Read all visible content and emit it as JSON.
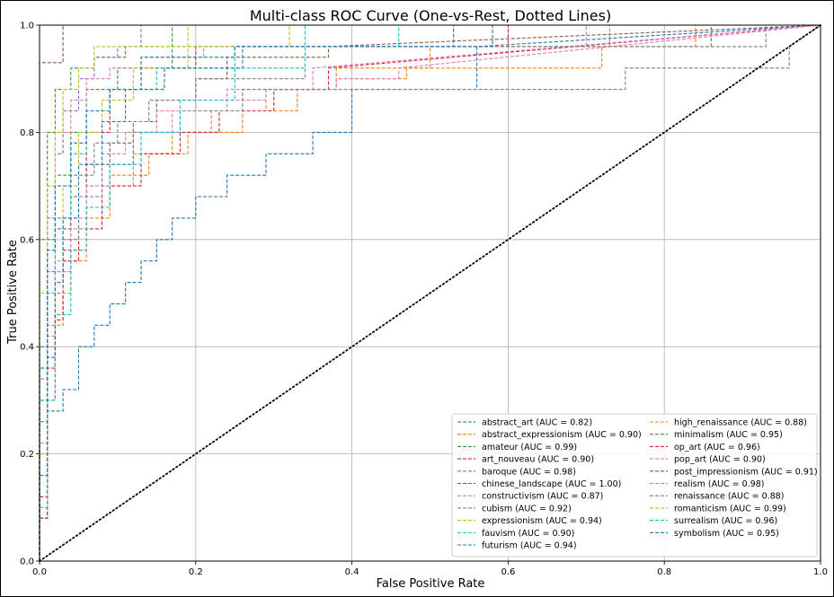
{
  "chart_data": {
    "type": "line",
    "title": "Multi-class ROC Curve (One-vs-Rest, Dotted Lines)",
    "xlabel": "False Positive Rate",
    "ylabel": "True Positive Rate",
    "xlim": [
      0.0,
      1.0
    ],
    "ylim": [
      0.0,
      1.0
    ],
    "xticks": [
      "0.0",
      "0.2",
      "0.4",
      "0.6",
      "0.8",
      "1.0"
    ],
    "yticks": [
      "0.0",
      "0.2",
      "0.4",
      "0.6",
      "0.8",
      "1.0"
    ],
    "grid": true,
    "legend_position": "lower-right",
    "legend_columns": 2,
    "diagonal": {
      "x": [
        0,
        1
      ],
      "y": [
        0,
        1
      ],
      "style": "dotted",
      "color": "#000000"
    },
    "series": [
      {
        "name": "abstract_art (AUC = 0.82)",
        "color": "#1f77b4",
        "x": [
          0,
          0,
          0.01,
          0.01,
          0.03,
          0.03,
          0.05,
          0.05,
          0.07,
          0.07,
          0.09,
          0.09,
          0.11,
          0.11,
          0.13,
          0.13,
          0.15,
          0.15,
          0.17,
          0.17,
          0.2,
          0.2,
          0.24,
          0.24,
          0.29,
          0.29,
          0.35,
          0.35,
          0.4,
          0.4,
          0.56,
          0.56,
          1
        ],
        "y": [
          0,
          0.08,
          0.08,
          0.28,
          0.28,
          0.32,
          0.32,
          0.4,
          0.4,
          0.44,
          0.44,
          0.48,
          0.48,
          0.52,
          0.52,
          0.56,
          0.56,
          0.6,
          0.6,
          0.64,
          0.64,
          0.68,
          0.68,
          0.72,
          0.72,
          0.76,
          0.76,
          0.8,
          0.8,
          0.88,
          0.88,
          0.96,
          1
        ]
      },
      {
        "name": "high_renaissance (AUC = 0.88)",
        "color": "#ff7f0e",
        "x": [
          0,
          0,
          0.02,
          0.02,
          0.04,
          0.04,
          0.06,
          0.06,
          0.09,
          0.09,
          0.12,
          0.12,
          0.17,
          0.17,
          0.22,
          0.22,
          0.29,
          0.29,
          0.38,
          0.38,
          0.47,
          0.47,
          0.72,
          0.72,
          0.84,
          0.84,
          1
        ],
        "y": [
          0,
          0.3,
          0.3,
          0.5,
          0.5,
          0.58,
          0.58,
          0.64,
          0.64,
          0.7,
          0.7,
          0.76,
          0.76,
          0.8,
          0.8,
          0.84,
          0.84,
          0.88,
          0.88,
          0.9,
          0.9,
          0.92,
          0.92,
          0.96,
          0.96,
          1,
          1
        ]
      },
      {
        "name": "abstract_expressionism (AUC = 0.90)",
        "color": "#ff7f0e",
        "x": [
          0,
          0,
          0.01,
          0.01,
          0.03,
          0.03,
          0.06,
          0.06,
          0.09,
          0.09,
          0.14,
          0.14,
          0.19,
          0.19,
          0.26,
          0.26,
          0.33,
          0.33,
          0.38,
          0.38,
          0.5,
          0.5,
          0.73,
          0.73,
          1
        ],
        "y": [
          0,
          0.2,
          0.2,
          0.44,
          0.44,
          0.56,
          0.56,
          0.66,
          0.66,
          0.72,
          0.72,
          0.76,
          0.76,
          0.8,
          0.8,
          0.84,
          0.84,
          0.88,
          0.88,
          0.92,
          0.92,
          0.96,
          0.96,
          1,
          1
        ]
      },
      {
        "name": "minimalism (AUC = 0.95)",
        "color": "#2ca02c",
        "x": [
          0,
          0,
          0.01,
          0.01,
          0.02,
          0.02,
          0.04,
          0.04,
          0.06,
          0.06,
          0.1,
          0.1,
          0.17,
          0.17,
          0.86,
          0.86,
          1
        ],
        "y": [
          0,
          0.4,
          0.4,
          0.6,
          0.6,
          0.72,
          0.72,
          0.8,
          0.8,
          0.88,
          0.88,
          0.92,
          0.92,
          0.96,
          0.96,
          1,
          1
        ]
      },
      {
        "name": "amateur (AUC = 0.99)",
        "color": "#2ca02c",
        "x": [
          0,
          0,
          0.01,
          0.01,
          0.02,
          0.02,
          0.04,
          0.04,
          0.07,
          0.07,
          0.11,
          0.11,
          0.17,
          0.17,
          1
        ],
        "y": [
          0,
          0.6,
          0.6,
          0.8,
          0.8,
          0.88,
          0.88,
          0.92,
          0.92,
          0.94,
          0.94,
          0.96,
          0.96,
          1,
          1
        ]
      },
      {
        "name": "op_art (AUC = 0.96)",
        "color": "#d62728",
        "x": [
          0,
          0,
          0.01,
          0.01,
          0.02,
          0.02,
          0.03,
          0.03,
          0.05,
          0.05,
          0.06,
          0.06,
          0.09,
          0.09,
          0.13,
          0.13,
          0.2,
          0.2,
          0.6,
          0.6,
          1
        ],
        "y": [
          0,
          0.08,
          0.08,
          0.3,
          0.3,
          0.45,
          0.45,
          0.58,
          0.58,
          0.68,
          0.68,
          0.8,
          0.8,
          0.88,
          0.88,
          0.92,
          0.92,
          0.96,
          0.96,
          1,
          1
        ]
      },
      {
        "name": "art_nouveau (AUC = 0.90)",
        "color": "#d62728",
        "x": [
          0,
          0,
          0.01,
          0.01,
          0.02,
          0.02,
          0.03,
          0.03,
          0.05,
          0.05,
          0.08,
          0.08,
          0.13,
          0.13,
          0.18,
          0.18,
          0.23,
          0.23,
          0.3,
          0.3,
          0.37,
          0.37,
          1
        ],
        "y": [
          0,
          0.12,
          0.12,
          0.36,
          0.36,
          0.46,
          0.46,
          0.56,
          0.56,
          0.62,
          0.62,
          0.7,
          0.7,
          0.76,
          0.76,
          0.8,
          0.8,
          0.84,
          0.84,
          0.88,
          0.88,
          0.92,
          1
        ]
      },
      {
        "name": "pop_art (AUC = 0.90)",
        "color": "#e377c2",
        "x": [
          0,
          0,
          0.01,
          0.01,
          0.02,
          0.02,
          0.04,
          0.04,
          0.06,
          0.06,
          0.09,
          0.09,
          0.12,
          0.12,
          0.17,
          0.17,
          0.2,
          0.2,
          0.29,
          0.29,
          0.38,
          0.38,
          0.46,
          0.46,
          1
        ],
        "y": [
          0,
          0.22,
          0.22,
          0.4,
          0.4,
          0.54,
          0.54,
          0.64,
          0.64,
          0.7,
          0.7,
          0.74,
          0.74,
          0.8,
          0.8,
          0.84,
          0.84,
          0.86,
          0.86,
          0.88,
          0.88,
          0.9,
          0.9,
          0.92,
          1
        ]
      },
      {
        "name": "baroque (AUC = 0.98)",
        "color": "#9467bd",
        "x": [
          0,
          0,
          0.01,
          0.01,
          0.02,
          0.02,
          0.03,
          0.03,
          0.05,
          0.05,
          0.07,
          0.07,
          0.1,
          0.1,
          0.13,
          0.13,
          1
        ],
        "y": [
          0,
          0.4,
          0.4,
          0.64,
          0.64,
          0.76,
          0.76,
          0.84,
          0.84,
          0.9,
          0.9,
          0.94,
          0.94,
          0.96,
          0.96,
          1,
          1
        ]
      },
      {
        "name": "post_impressionism (AUC = 0.91)",
        "color": "#8c564b",
        "x": [
          0,
          0,
          0.01,
          0.01,
          0.02,
          0.02,
          0.04,
          0.04,
          0.06,
          0.06,
          0.09,
          0.09,
          0.12,
          0.12,
          0.15,
          0.15,
          0.2,
          0.2,
          0.24,
          0.24,
          0.37,
          0.37,
          1
        ],
        "y": [
          0,
          0.3,
          0.3,
          0.5,
          0.5,
          0.62,
          0.62,
          0.68,
          0.68,
          0.74,
          0.74,
          0.78,
          0.78,
          0.82,
          0.82,
          0.86,
          0.86,
          0.9,
          0.9,
          0.94,
          0.94,
          0.96,
          1
        ]
      },
      {
        "name": "chinese_landscape (AUC = 1.00)",
        "color": "#8c564b",
        "x": [
          0,
          0,
          0.03,
          0.03,
          1
        ],
        "y": [
          0,
          0.93,
          0.93,
          1,
          1
        ]
      },
      {
        "name": "realism (AUC = 0.98)",
        "color": "#e377c2",
        "x": [
          0,
          0,
          0.01,
          0.01,
          0.02,
          0.02,
          0.04,
          0.04,
          0.06,
          0.06,
          0.09,
          0.09,
          0.13,
          0.13,
          0.21,
          0.21,
          0.7,
          0.7,
          1
        ],
        "y": [
          0,
          0.5,
          0.5,
          0.7,
          0.7,
          0.8,
          0.8,
          0.86,
          0.86,
          0.9,
          0.9,
          0.92,
          0.92,
          0.94,
          0.94,
          0.96,
          0.96,
          1,
          1
        ]
      },
      {
        "name": "constructivism (AUC = 0.87)",
        "color": "#e377c2",
        "x": [
          0,
          0,
          0.01,
          0.01,
          0.02,
          0.02,
          0.04,
          0.04,
          0.06,
          0.06,
          0.08,
          0.08,
          0.11,
          0.11,
          0.15,
          0.15,
          0.24,
          0.24,
          0.35,
          0.35,
          1
        ],
        "y": [
          0,
          0.2,
          0.2,
          0.42,
          0.42,
          0.54,
          0.54,
          0.62,
          0.62,
          0.7,
          0.7,
          0.76,
          0.76,
          0.8,
          0.8,
          0.84,
          0.84,
          0.88,
          0.88,
          0.92,
          1
        ]
      },
      {
        "name": "renaissance (AUC = 0.88)",
        "color": "#7f7f7f",
        "x": [
          0,
          0,
          0.01,
          0.01,
          0.03,
          0.03,
          0.05,
          0.05,
          0.08,
          0.08,
          0.12,
          0.12,
          0.18,
          0.18,
          0.26,
          0.26,
          0.75,
          0.75,
          0.96,
          0.96,
          1
        ],
        "y": [
          0,
          0.26,
          0.26,
          0.5,
          0.5,
          0.6,
          0.6,
          0.68,
          0.68,
          0.74,
          0.74,
          0.8,
          0.8,
          0.84,
          0.84,
          0.88,
          0.88,
          0.92,
          0.92,
          0.96,
          1
        ]
      },
      {
        "name": "cubism (AUC = 0.92)",
        "color": "#7f7f7f",
        "x": [
          0,
          0,
          0.01,
          0.01,
          0.02,
          0.02,
          0.04,
          0.04,
          0.07,
          0.07,
          0.1,
          0.1,
          0.14,
          0.14,
          0.2,
          0.2,
          0.34,
          0.34,
          0.93,
          0.93,
          1
        ],
        "y": [
          0,
          0.34,
          0.34,
          0.54,
          0.54,
          0.64,
          0.64,
          0.72,
          0.72,
          0.78,
          0.78,
          0.82,
          0.82,
          0.86,
          0.86,
          0.9,
          0.9,
          0.96,
          0.96,
          1,
          1
        ]
      },
      {
        "name": "romanticism (AUC = 0.99)",
        "color": "#bcbd22",
        "x": [
          0,
          0,
          0.01,
          0.01,
          0.02,
          0.02,
          0.03,
          0.03,
          0.05,
          0.05,
          0.07,
          0.07,
          0.19,
          0.19,
          1
        ],
        "y": [
          0,
          0.5,
          0.5,
          0.7,
          0.7,
          0.8,
          0.8,
          0.88,
          0.88,
          0.92,
          0.92,
          0.96,
          0.96,
          1,
          1
        ]
      },
      {
        "name": "expressionism (AUC = 0.94)",
        "color": "#bcbd22",
        "x": [
          0,
          0,
          0.01,
          0.01,
          0.02,
          0.02,
          0.03,
          0.03,
          0.05,
          0.05,
          0.08,
          0.08,
          0.12,
          0.12,
          0.19,
          0.19,
          0.32,
          0.32,
          1
        ],
        "y": [
          0,
          0.2,
          0.2,
          0.4,
          0.4,
          0.56,
          0.56,
          0.7,
          0.7,
          0.8,
          0.8,
          0.86,
          0.86,
          0.92,
          0.92,
          0.96,
          0.96,
          1,
          1
        ]
      },
      {
        "name": "surrealism (AUC = 0.96)",
        "color": "#17becf",
        "x": [
          0,
          0,
          0.01,
          0.01,
          0.02,
          0.02,
          0.04,
          0.04,
          0.06,
          0.06,
          0.09,
          0.09,
          0.15,
          0.15,
          0.25,
          0.25,
          0.46,
          0.46,
          1
        ],
        "y": [
          0,
          0.3,
          0.3,
          0.5,
          0.5,
          0.64,
          0.64,
          0.76,
          0.76,
          0.84,
          0.84,
          0.88,
          0.88,
          0.92,
          0.92,
          0.96,
          0.96,
          1,
          1
        ]
      },
      {
        "name": "fauvism (AUC = 0.90)",
        "color": "#17becf",
        "x": [
          0,
          0,
          0.01,
          0.01,
          0.02,
          0.02,
          0.04,
          0.04,
          0.06,
          0.06,
          0.09,
          0.09,
          0.13,
          0.13,
          0.18,
          0.18,
          0.25,
          0.25,
          0.34,
          0.34,
          1
        ],
        "y": [
          0,
          0.1,
          0.1,
          0.3,
          0.3,
          0.46,
          0.46,
          0.58,
          0.58,
          0.66,
          0.66,
          0.74,
          0.74,
          0.8,
          0.8,
          0.86,
          0.86,
          0.92,
          0.92,
          1,
          1
        ]
      },
      {
        "name": "symbolism (AUC = 0.95)",
        "color": "#1f77b4",
        "x": [
          0,
          0,
          0.01,
          0.01,
          0.02,
          0.02,
          0.04,
          0.04,
          0.06,
          0.06,
          0.09,
          0.09,
          0.13,
          0.13,
          0.25,
          0.25,
          0.58,
          0.58,
          1
        ],
        "y": [
          0,
          0.36,
          0.36,
          0.58,
          0.58,
          0.7,
          0.7,
          0.78,
          0.78,
          0.84,
          0.84,
          0.88,
          0.88,
          0.94,
          0.94,
          0.96,
          0.96,
          1,
          1
        ]
      },
      {
        "name": "futurism (AUC = 0.94)",
        "color": "#1f77b4",
        "x": [
          0,
          0,
          0.01,
          0.01,
          0.02,
          0.02,
          0.03,
          0.03,
          0.05,
          0.05,
          0.08,
          0.08,
          0.11,
          0.11,
          0.16,
          0.16,
          0.26,
          0.26,
          0.53,
          0.53,
          1
        ],
        "y": [
          0,
          0.16,
          0.16,
          0.38,
          0.38,
          0.52,
          0.52,
          0.64,
          0.64,
          0.74,
          0.74,
          0.82,
          0.82,
          0.88,
          0.88,
          0.92,
          0.92,
          0.96,
          0.96,
          1,
          1
        ]
      }
    ],
    "legend_left_column": [
      {
        "label": "abstract_art (AUC = 0.82)",
        "color": "#1f77b4"
      },
      {
        "label": "abstract_expressionism (AUC = 0.90)",
        "color": "#ff7f0e"
      },
      {
        "label": "amateur (AUC = 0.99)",
        "color": "#2ca02c"
      },
      {
        "label": "art_nouveau (AUC = 0.90)",
        "color": "#d62728"
      },
      {
        "label": "baroque (AUC = 0.98)",
        "color": "#9467bd"
      },
      {
        "label": "chinese_landscape (AUC = 1.00)",
        "color": "#8c564b"
      },
      {
        "label": "constructivism (AUC = 0.87)",
        "color": "#e377c2"
      },
      {
        "label": "cubism (AUC = 0.92)",
        "color": "#7f7f7f"
      },
      {
        "label": "expressionism (AUC = 0.94)",
        "color": "#bcbd22"
      },
      {
        "label": "fauvism (AUC = 0.90)",
        "color": "#17becf"
      },
      {
        "label": "futurism (AUC = 0.94)",
        "color": "#1f77b4"
      }
    ],
    "legend_right_column": [
      {
        "label": "high_renaissance (AUC = 0.88)",
        "color": "#ff7f0e"
      },
      {
        "label": "minimalism (AUC = 0.95)",
        "color": "#2ca02c"
      },
      {
        "label": "op_art (AUC = 0.96)",
        "color": "#d62728"
      },
      {
        "label": "pop_art (AUC = 0.90)",
        "color": "#e377c2"
      },
      {
        "label": "post_impressionism (AUC = 0.91)",
        "color": "#8c564b"
      },
      {
        "label": "realism (AUC = 0.98)",
        "color": "#e377c2"
      },
      {
        "label": "renaissance (AUC = 0.88)",
        "color": "#7f7f7f"
      },
      {
        "label": "romanticism (AUC = 0.99)",
        "color": "#bcbd22"
      },
      {
        "label": "surrealism (AUC = 0.96)",
        "color": "#17becf"
      },
      {
        "label": "symbolism (AUC = 0.95)",
        "color": "#1f77b4"
      }
    ]
  }
}
